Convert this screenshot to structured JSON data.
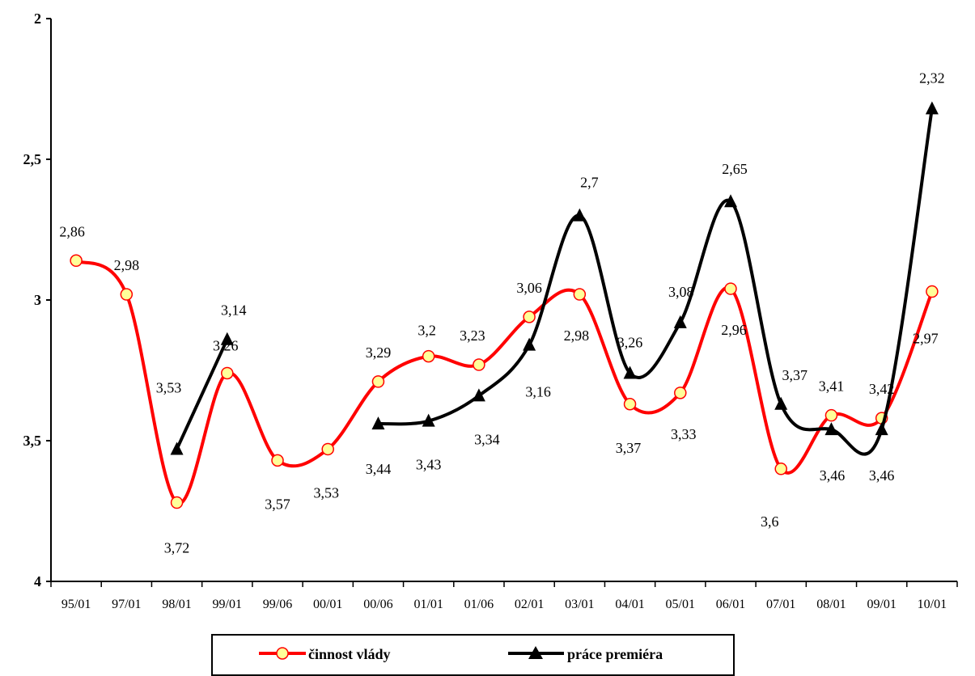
{
  "chart_data": {
    "type": "line",
    "y_inverted": true,
    "ylim": [
      2,
      4
    ],
    "yticks": [
      "2",
      "2,5",
      "3",
      "3,5",
      "4"
    ],
    "categories": [
      "95/01",
      "97/01",
      "98/01",
      "99/01",
      "99/06",
      "00/01",
      "00/06",
      "01/01",
      "01/06",
      "02/01",
      "03/01",
      "04/01",
      "05/01",
      "06/01",
      "07/01",
      "08/01",
      "09/01",
      "10/01"
    ],
    "series": [
      {
        "name": "činnost vlády",
        "color": "#ff0000",
        "marker": "circle",
        "marker_fill": "#ffff99",
        "values": [
          2.86,
          2.98,
          3.72,
          3.26,
          3.57,
          3.53,
          3.29,
          3.2,
          3.23,
          3.06,
          2.98,
          3.37,
          3.33,
          2.96,
          3.6,
          3.41,
          3.42,
          2.97
        ],
        "labels": [
          "2,86",
          "2,98",
          "3,72",
          "3,26",
          "3,57",
          "3,53",
          "3,29",
          "3,2",
          "3,23",
          "3,06",
          "2,98",
          "3,37",
          "3,33",
          "2,96",
          "3,6",
          "3,41",
          "3,42",
          "2,97"
        ]
      },
      {
        "name": "práce premiéra",
        "color": "#000000",
        "marker": "triangle",
        "values": [
          null,
          null,
          3.53,
          3.14,
          null,
          null,
          3.44,
          3.43,
          3.34,
          3.16,
          2.7,
          3.26,
          3.08,
          2.65,
          3.37,
          3.46,
          3.46,
          2.32
        ],
        "labels": [
          null,
          null,
          "3,53",
          "3,14",
          null,
          null,
          "3,44",
          "3,43",
          "3,34",
          "3,16",
          "2,7",
          "3,26",
          "3,08",
          "2,65",
          "3,37",
          "3,46",
          "3,46",
          "2,32"
        ]
      }
    ],
    "legend": "bottom"
  }
}
